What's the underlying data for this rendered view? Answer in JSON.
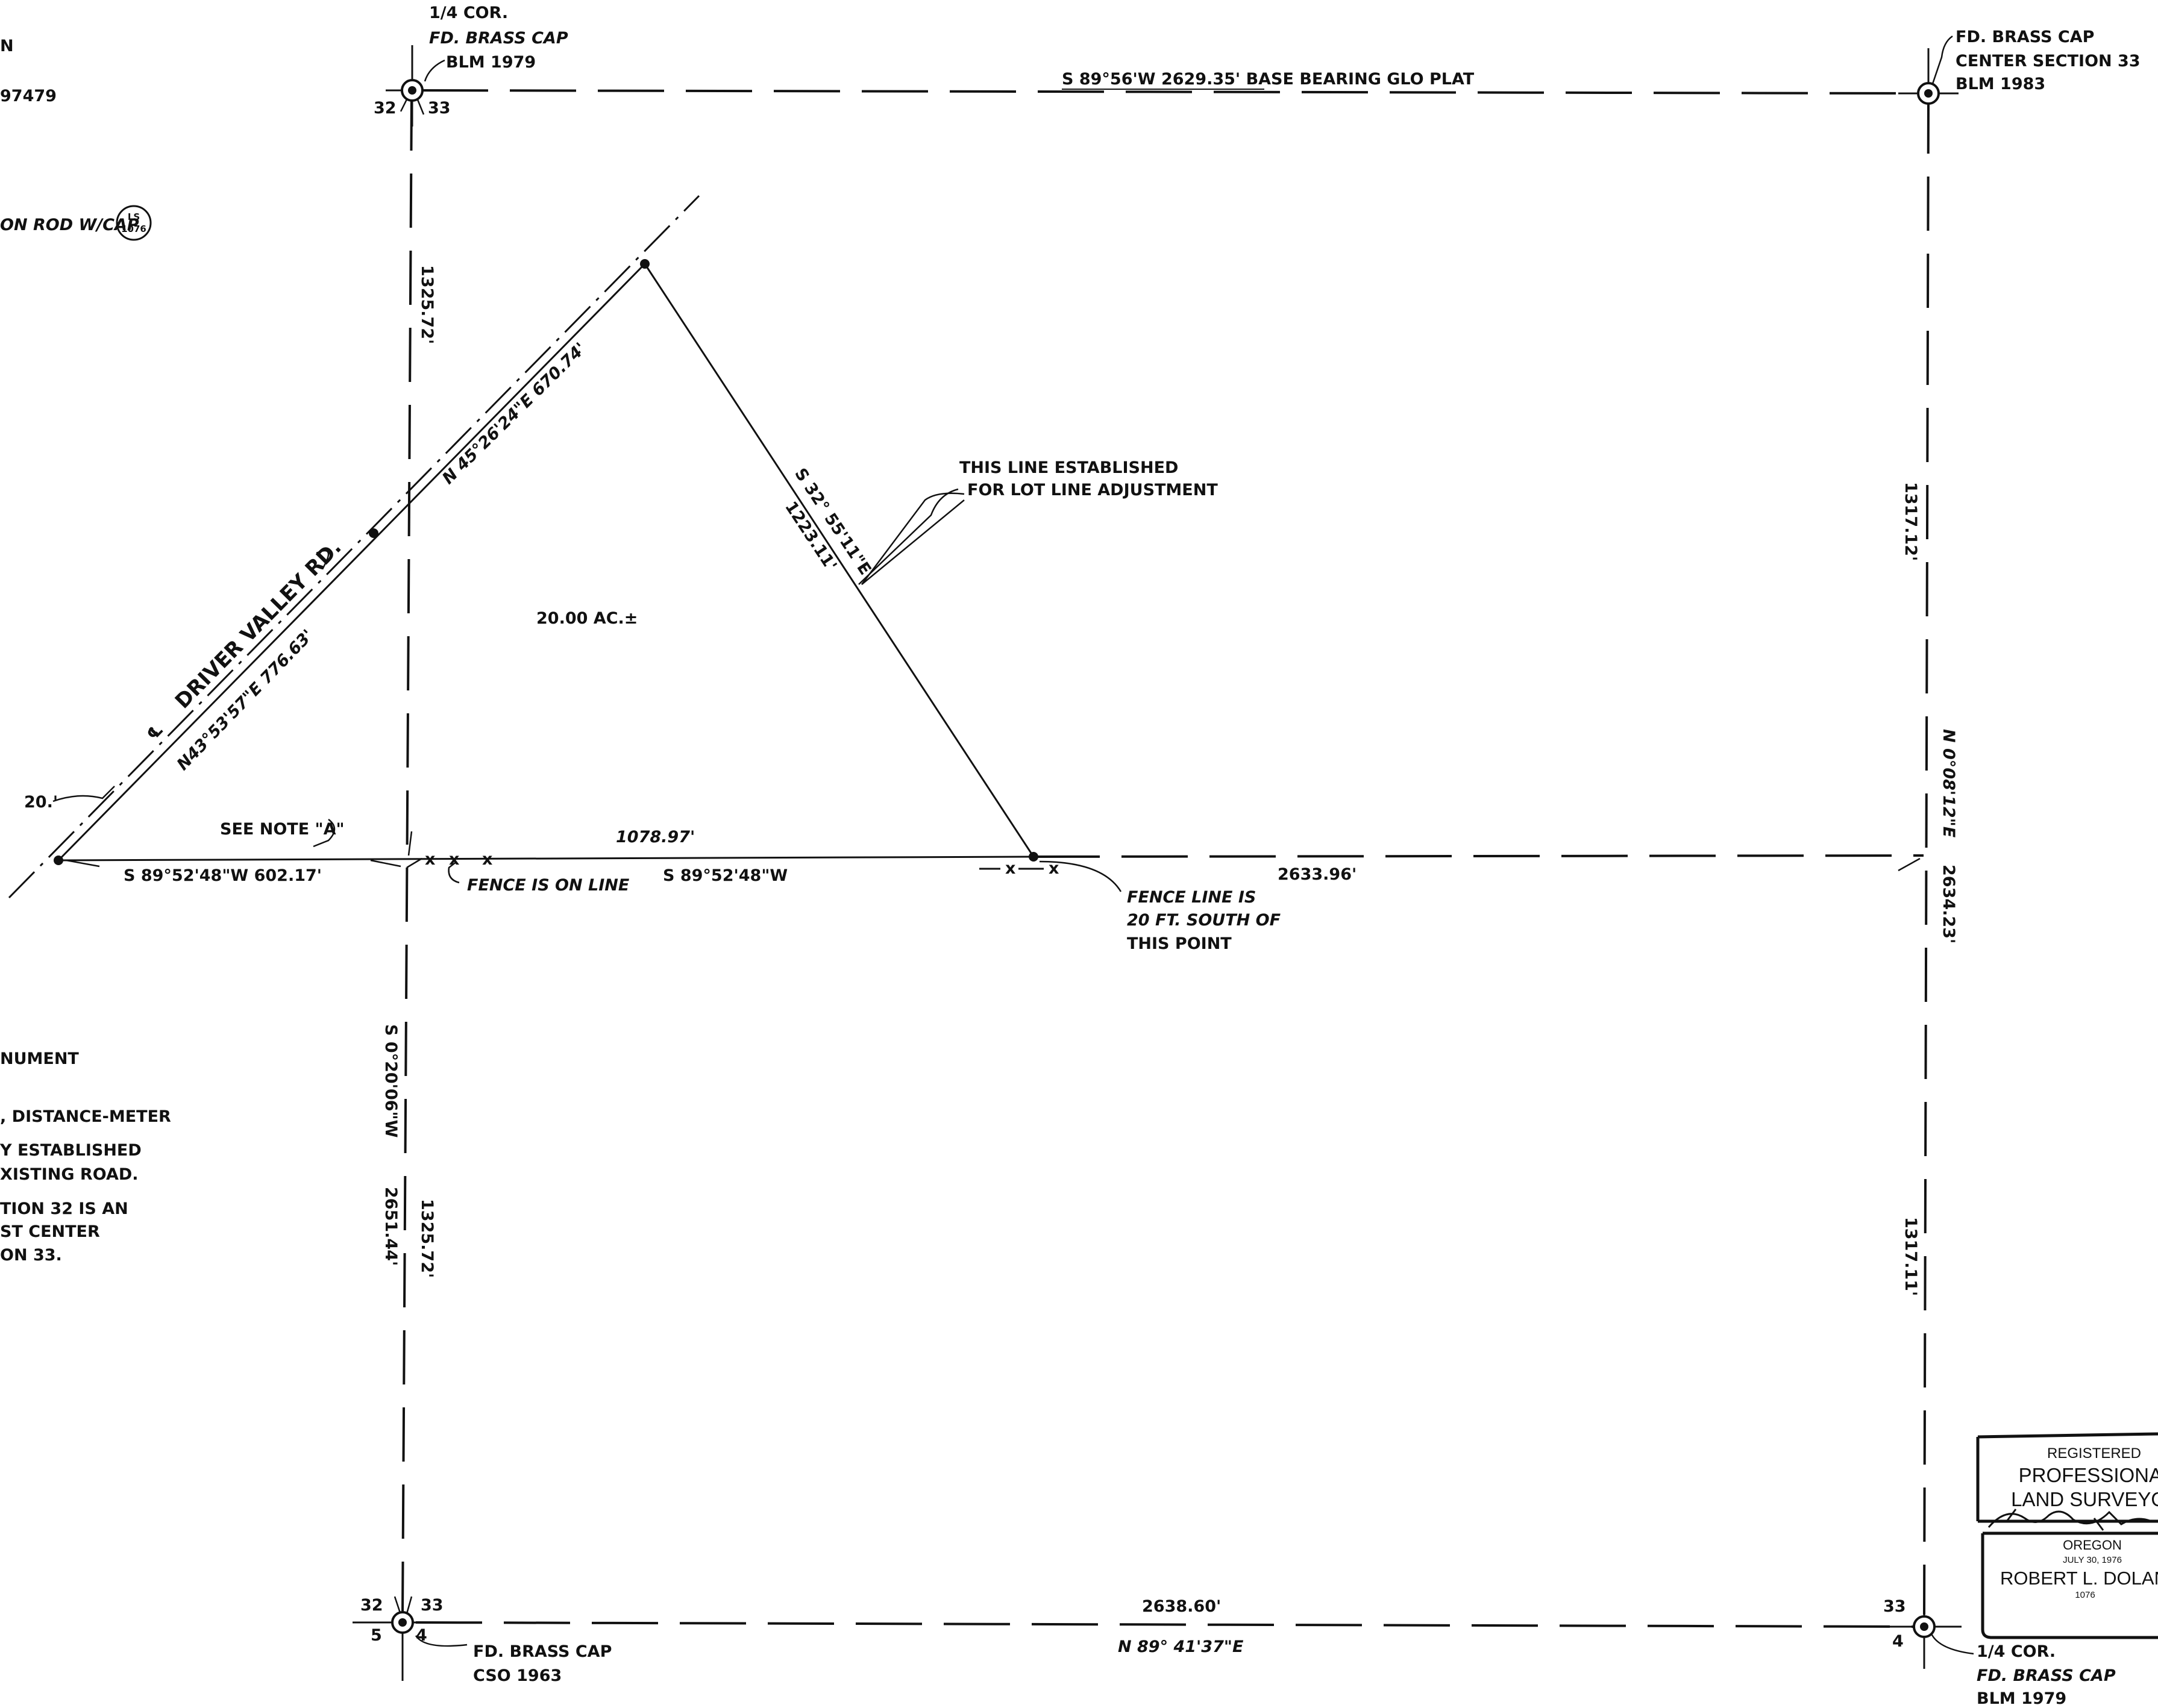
{
  "top_left_corner": {
    "line1": "1/4 COR.",
    "line2": "FD. BRASS CAP",
    "line3": "BLM 1979",
    "sec_left": "32",
    "sec_right": "33"
  },
  "top_right_corner": {
    "line1": "FD. BRASS CAP",
    "line2": "CENTER SECTION 33",
    "line3": "BLM 1983"
  },
  "bottom_left_corner": {
    "sec_nw": "32",
    "sec_ne": "33",
    "sec_sw": "5",
    "sec_se": "4",
    "line1": "FD. BRASS CAP",
    "line2": "CSO    1963"
  },
  "bottom_right_corner": {
    "sec_nw": "33",
    "sec_sw": "4",
    "line1": "1/4 COR.",
    "line2": "FD. BRASS CAP",
    "line3": "BLM 1979"
  },
  "lines": {
    "north": "S 89°56'W   2629.35'  BASE BEARING  GLO PLAT",
    "west_upper": "1325.72'",
    "west_lower_bearing": "S 0°20'06\"W",
    "west_lower_total": "2651.44'",
    "west_lower_dist": "1325.72'",
    "east_upper": "1317.12'",
    "east_bearing": "N 0°08'12\"E",
    "east_total": "2634.23'",
    "east_lower": "1317.11'",
    "south_dist": "2638.60'",
    "south_bearing": "N 89° 41'37\"E",
    "mid_total": "2633.96'",
    "mid_dist": "1078.97'",
    "mid_bearing": "S 89°52'48\"W",
    "mid_west": "S 89°52'48\"W   602.17'",
    "diagonal_bearing": "S 32° 55'11\"E",
    "diagonal_dist": "1223.11'"
  },
  "road": {
    "name": "DRIVER VALLEY RD.",
    "cl_symbol": "℄",
    "upper_call": "N 45°26'24\"E    670.74'",
    "lower_call": "N43°53'57\"E   776.63'",
    "width": "20.'"
  },
  "notes": {
    "adjustment_1": "THIS LINE ESTABLISHED",
    "adjustment_2": "FOR LOT LINE ADJUSTMENT",
    "area": "20.00 AC.±",
    "see_note": "SEE NOTE \"A\"",
    "fence_on_line": "FENCE IS ON LINE",
    "fence_south_1": "FENCE  LINE IS",
    "fence_south_2": "20 FT.  SOUTH OF",
    "fence_south_3": "THIS POINT",
    "fence_mark": "x"
  },
  "left_margin": {
    "t1": "N",
    "t2": "97479",
    "t3": "ON ROD W/CAP",
    "t3_cap_top": "LS",
    "t3_cap_bottom": "1076",
    "t4": "NUMENT",
    "t5": ", DISTANCE-METER",
    "t6": "Y ESTABLISHED",
    "t7": "XISTING ROAD.",
    "t8": "TION 32 IS AN",
    "t9": "ST CENTER",
    "t10": "ON 33."
  },
  "stamp": {
    "registered": "REGISTERED",
    "professional": "PROFESSIONAL",
    "land_surveyor": "LAND SURVEYOR",
    "state": "OREGON",
    "date": "JULY 30, 1976",
    "name": "ROBERT L. DOLAN",
    "number": "1076"
  }
}
